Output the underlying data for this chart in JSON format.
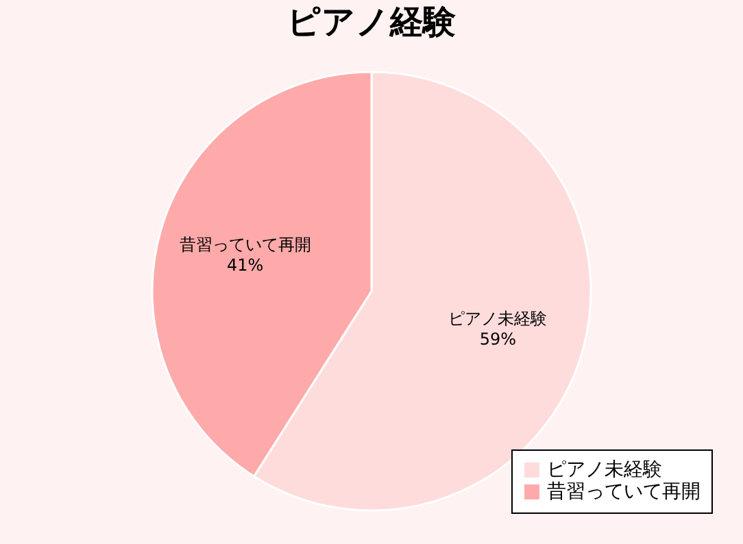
{
  "chart_data": {
    "type": "pie",
    "title": "ピアノ経験",
    "categories": [
      "ピアノ未経験",
      "昔習っていて再開"
    ],
    "values": [
      59,
      41
    ],
    "colors": [
      "#ffdcdc",
      "#ffaaaa"
    ],
    "value_labels": [
      "59%",
      "41%"
    ],
    "legend": "bottom right"
  }
}
